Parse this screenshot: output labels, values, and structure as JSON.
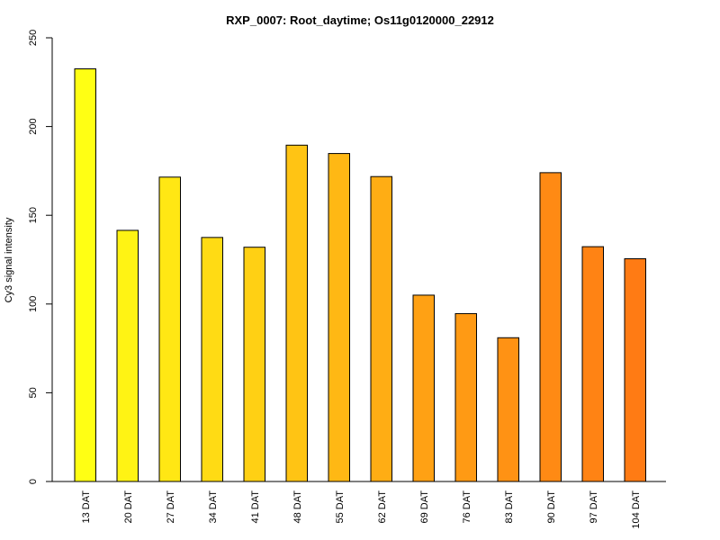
{
  "chart_data": {
    "type": "bar",
    "title": "RXP_0007: Root_daytime; Os11g0120000_22912",
    "xlabel": "",
    "ylabel": "Cy3 signal intensity",
    "ylim": [
      0,
      250
    ],
    "yticks": [
      0,
      50,
      100,
      150,
      200,
      250
    ],
    "grid": false,
    "categories": [
      "13 DAT",
      "20 DAT",
      "27 DAT",
      "34 DAT",
      "41 DAT",
      "48 DAT",
      "55 DAT",
      "62 DAT",
      "69 DAT",
      "76 DAT",
      "83 DAT",
      "90 DAT",
      "97 DAT",
      "104 DAT"
    ],
    "values": [
      232.5,
      141.5,
      171.5,
      137.5,
      132,
      189.5,
      184.8,
      171.8,
      105,
      94.6,
      81,
      174,
      132.3,
      125.5
    ],
    "colors": [
      "#ffff14",
      "#fff314",
      "#ffe714",
      "#ffdb14",
      "#ffd014",
      "#ffc414",
      "#ffb814",
      "#ffad14",
      "#ffa114",
      "#ff9a14",
      "#ff9214",
      "#ff8a14",
      "#ff8314",
      "#ff7b14"
    ]
  }
}
